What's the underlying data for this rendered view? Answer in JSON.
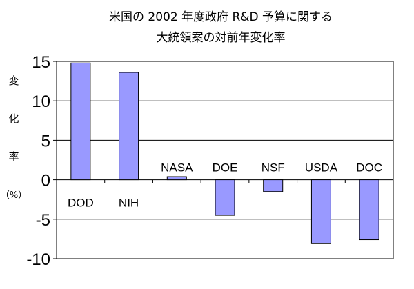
{
  "chart_data": {
    "type": "bar",
    "title_lines": [
      "米国の 2002 年度政府 R&D 予算に関する",
      "大統領案の対前年変化率"
    ],
    "ylabel_chars": [
      "変",
      "化",
      "率",
      "（%）"
    ],
    "categories": [
      "DOD",
      "NIH",
      "NASA",
      "DOE",
      "NSF",
      "USDA",
      "DOC"
    ],
    "values": [
      14.8,
      13.6,
      0.4,
      -4.5,
      -1.5,
      -8.1,
      -7.6
    ],
    "ylim": [
      -10,
      15
    ],
    "yticks": [
      15,
      10,
      5,
      0,
      -5,
      -10
    ],
    "ytick_labels": [
      "15",
      "10",
      "5",
      "0",
      "-5",
      "-10"
    ],
    "grid": true,
    "bar_color": "#9999ff",
    "legend": "none"
  }
}
